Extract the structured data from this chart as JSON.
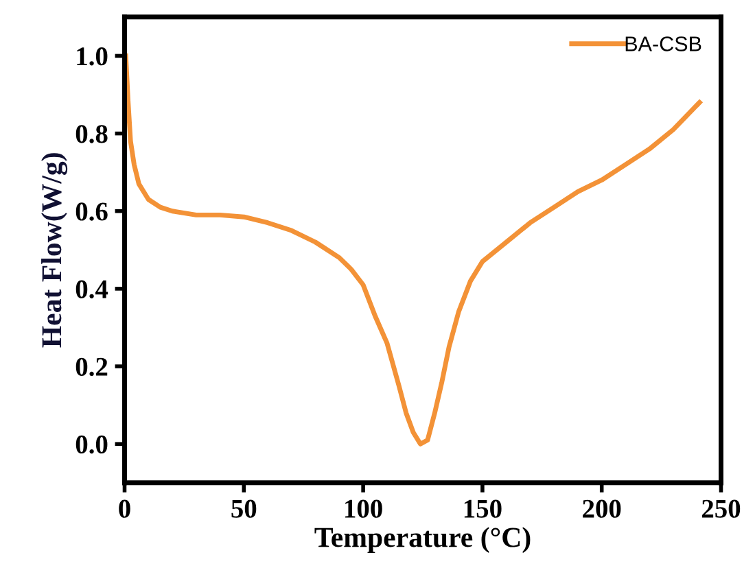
{
  "chart_data": {
    "type": "line",
    "xlabel": "Temperature (°C)",
    "ylabel": "Heat Flow(W/g)",
    "x": [
      0.5,
      1.5,
      2.5,
      4,
      6,
      10,
      15,
      20,
      30,
      40,
      50,
      60,
      70,
      80,
      90,
      95,
      100,
      105,
      110,
      115,
      118,
      121,
      124,
      127,
      130,
      133,
      136,
      140,
      145,
      150,
      160,
      170,
      180,
      190,
      200,
      210,
      220,
      230,
      241
    ],
    "series": [
      {
        "name": "BA-CSB",
        "color": "#f39237",
        "values": [
          1.0,
          0.88,
          0.78,
          0.72,
          0.67,
          0.63,
          0.61,
          0.6,
          0.59,
          0.59,
          0.585,
          0.57,
          0.55,
          0.52,
          0.48,
          0.45,
          0.41,
          0.33,
          0.26,
          0.15,
          0.08,
          0.03,
          0.0,
          0.01,
          0.08,
          0.16,
          0.25,
          0.34,
          0.42,
          0.47,
          0.52,
          0.57,
          0.61,
          0.65,
          0.68,
          0.72,
          0.76,
          0.81,
          0.88
        ]
      }
    ],
    "xlim": [
      0,
      250
    ],
    "ylim": [
      -0.1,
      1.1
    ],
    "xticks": [
      0,
      50,
      100,
      150,
      200,
      250
    ],
    "yticks": [
      {
        "value": 0,
        "label": "0.0"
      },
      {
        "value": 0.2,
        "label": "0.2"
      },
      {
        "value": 0.4,
        "label": "0.4"
      },
      {
        "value": 0.6,
        "label": "0.6"
      },
      {
        "value": 0.8,
        "label": "0.8"
      },
      {
        "value": 1.0,
        "label": "1.0"
      }
    ],
    "grid": false,
    "legend": "top right",
    "marker": "none",
    "line_style": "solid"
  }
}
